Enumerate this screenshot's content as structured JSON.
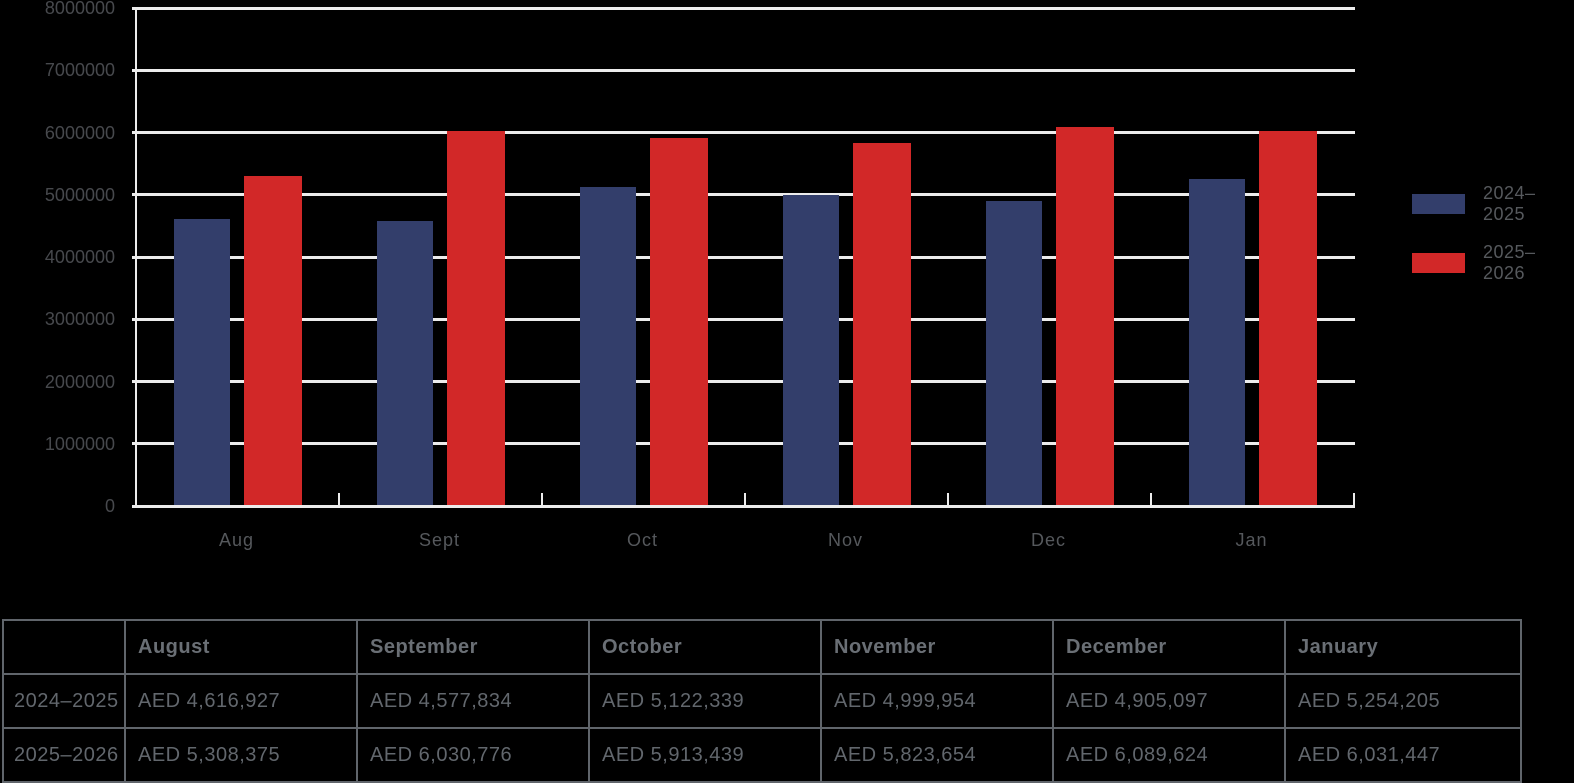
{
  "chart_data": {
    "type": "bar",
    "title": "",
    "xlabel": "",
    "ylabel": "",
    "categories": [
      "Aug",
      "Sept",
      "Oct",
      "Nov",
      "Dec",
      "Jan"
    ],
    "series": [
      {
        "name": "2024–2025",
        "color": "#333e6b",
        "values": [
          4616927,
          4577834,
          5122339,
          4999954,
          4905097,
          5254205
        ]
      },
      {
        "name": "2025–2026",
        "color": "#d22828",
        "values": [
          5308375,
          6030776,
          5913439,
          5823654,
          6089624,
          6031447
        ]
      }
    ],
    "ylim": [
      0,
      8000000
    ],
    "yticks": [
      0,
      1000000,
      2000000,
      3000000,
      4000000,
      5000000,
      6000000,
      7000000,
      8000000
    ],
    "ytick_labels": [
      "0",
      "1000000",
      "2000000",
      "3000000",
      "4000000",
      "5000000",
      "6000000",
      "7000000",
      "8000000"
    ],
    "grid": true,
    "legend_position": "right"
  },
  "table": {
    "columns": [
      "",
      "August",
      "September",
      "October",
      "November",
      "December",
      "January"
    ],
    "rows": [
      {
        "label": "2024–2025",
        "values": [
          "AED 4,616,927",
          "AED 4,577,834",
          "AED 5,122,339",
          "AED 4,999,954",
          "AED 4,905,097",
          "AED 5,254,205"
        ]
      },
      {
        "label": "2025–2026",
        "values": [
          "AED 5,308,375",
          "AED 6,030,776",
          "AED 5,913,439",
          "AED 5,823,654",
          "AED 6,089,624",
          "AED 6,031,447"
        ]
      }
    ]
  },
  "colors": {
    "background": "#000000",
    "grid": "#ececec",
    "axis": "#ececec",
    "bar_blue": "#333e6b",
    "bar_red": "#d22828",
    "ytick_text": "#47494d",
    "xtick_text": "#55585c",
    "legend_text": "#56595d",
    "table_text": "#62676d",
    "table_header_text": "#6a6f75",
    "table_border": "#60656b"
  }
}
